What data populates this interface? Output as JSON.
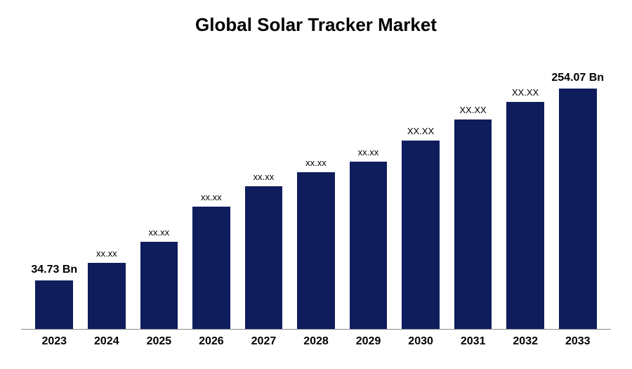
{
  "chart": {
    "type": "bar",
    "title": "Global Solar Tracker Market",
    "title_fontsize": 26,
    "title_fontweight": "bold",
    "background_color": "#ffffff",
    "bar_color": "#0f1d5c",
    "axis_color": "#888888",
    "text_color": "#000000",
    "categories": [
      "2023",
      "2024",
      "2025",
      "2026",
      "2027",
      "2028",
      "2029",
      "2030",
      "2031",
      "2032",
      "2033"
    ],
    "values": [
      70,
      95,
      125,
      175,
      205,
      225,
      240,
      270,
      300,
      325,
      345
    ],
    "max_value": 400,
    "bar_labels": [
      "34.73 Bn",
      "xx.xx",
      "xx.xx",
      "xx.xx",
      "xx.xx",
      "xx.xx",
      "xx.xx",
      "XX.XX",
      "XX.XX",
      "XX.XX",
      "254.07 Bn"
    ],
    "bar_label_bold": [
      true,
      false,
      false,
      false,
      false,
      false,
      false,
      false,
      false,
      false,
      true
    ],
    "bar_label_fontsize_large": 16,
    "bar_label_fontsize_small": 13,
    "x_label_fontsize": 16,
    "x_label_fontweight": "bold",
    "bar_width_ratio": 0.72
  }
}
